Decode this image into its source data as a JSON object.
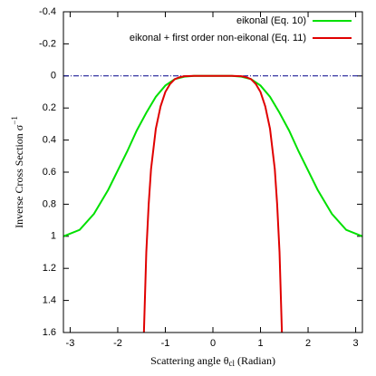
{
  "chart_data": {
    "type": "line",
    "xlabel": [
      "Scattering angle θ",
      "cl",
      " (Radian)"
    ],
    "ylabel": [
      "Inverse Cross Section σ",
      "−1"
    ],
    "xlim": [
      -3.14159,
      3.14159
    ],
    "xticks": [
      -3,
      -2,
      -1,
      0,
      1,
      2,
      3
    ],
    "ylim": [
      -0.4,
      1.6
    ],
    "yticks": [
      -0.4,
      -0.2,
      0,
      0.2,
      0.4,
      0.6,
      0.8,
      1,
      1.2,
      1.4,
      1.6
    ],
    "y_inverted": true,
    "legend": "upper right",
    "reference_line": {
      "value": 0,
      "color": "#00008b"
    },
    "series": [
      {
        "name": "eikonal (Eq. 10)",
        "color": "#00e000",
        "x": [
          -3.14,
          -2.8,
          -2.5,
          -2.2,
          -2,
          -1.8,
          -1.6,
          -1.4,
          -1.2,
          -1,
          -0.8,
          -0.6,
          -0.4,
          -0.2,
          0,
          0.2,
          0.4,
          0.6,
          0.8,
          1,
          1.2,
          1.4,
          1.6,
          1.8,
          2,
          2.2,
          2.5,
          2.8,
          3.14
        ],
        "values": [
          1,
          0.96,
          0.86,
          0.71,
          0.59,
          0.47,
          0.34,
          0.23,
          0.13,
          0.06,
          0.02,
          0.005,
          0,
          0,
          0,
          0,
          0,
          0.005,
          0.02,
          0.06,
          0.13,
          0.23,
          0.34,
          0.47,
          0.59,
          0.71,
          0.86,
          0.96,
          1
        ]
      },
      {
        "name": "eikonal + first order non-eikonal (Eq. 11)",
        "color": "#e00000",
        "x": [
          -1.45,
          -1.4,
          -1.35,
          -1.3,
          -1.2,
          -1.1,
          -1,
          -0.9,
          -0.8,
          -0.7,
          -0.6,
          -0.4,
          -0.2,
          0,
          0.2,
          0.4,
          0.6,
          0.7,
          0.8,
          0.9,
          1,
          1.1,
          1.2,
          1.3,
          1.35,
          1.4,
          1.45
        ],
        "values": [
          1.6,
          1.1,
          0.8,
          0.58,
          0.33,
          0.19,
          0.1,
          0.05,
          0.02,
          0.008,
          0.002,
          0,
          0,
          0,
          0,
          0,
          0.002,
          0.008,
          0.02,
          0.05,
          0.1,
          0.19,
          0.33,
          0.58,
          0.8,
          1.1,
          1.6
        ]
      }
    ]
  }
}
